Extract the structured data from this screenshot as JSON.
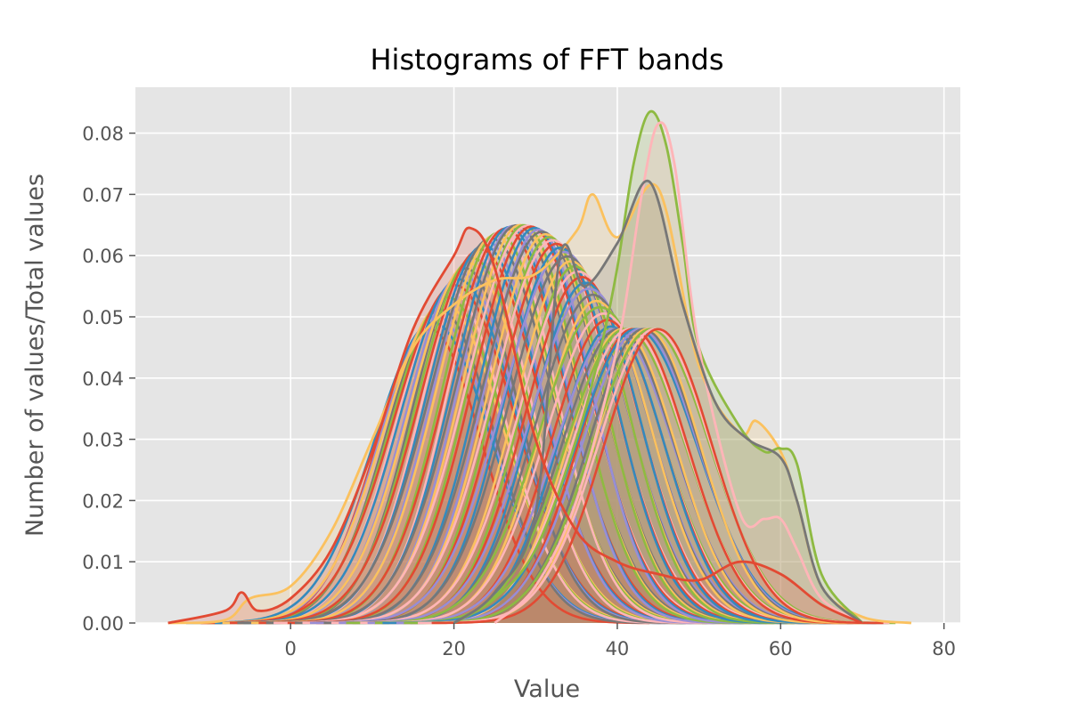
{
  "chart_data": {
    "type": "line",
    "title": "Histograms of FFT bands",
    "xlabel": "Value",
    "ylabel": "Number of values/Total values",
    "xlim": [
      -19,
      82
    ],
    "ylim": [
      0,
      0.0875
    ],
    "xticks": [
      0,
      20,
      40,
      60,
      80
    ],
    "xtick_labels": [
      "0",
      "20",
      "40",
      "60",
      "80"
    ],
    "yticks": [
      0,
      0.01,
      0.02,
      0.03,
      0.04,
      0.05,
      0.06,
      0.07,
      0.08
    ],
    "ytick_labels": [
      "0.00",
      "0.01",
      "0.02",
      "0.03",
      "0.04",
      "0.05",
      "0.06",
      "0.07",
      "0.08"
    ],
    "grid": true,
    "legend": "none",
    "style": {
      "plot_background": "#e5e5e5",
      "grid_color": "#ffffff",
      "palette": [
        "#e24a33",
        "#348abd",
        "#988ed5",
        "#777777",
        "#fbc15e",
        "#8eba42",
        "#ffb5b8"
      ]
    },
    "band_family": {
      "description_values": {
        "band_count": 64,
        "peak_x_range": [
          17,
          45
        ],
        "peak_height_range": [
          0.048,
          0.065
        ],
        "width_range": [
          6.5,
          7.5
        ]
      }
    },
    "series": [
      {
        "color": "#fbc15e",
        "x": [
          -15,
          -8,
          -5,
          0,
          5,
          10,
          15,
          20,
          25,
          30,
          35,
          37,
          40,
          45,
          50,
          55,
          57,
          60,
          62,
          65,
          70,
          76
        ],
        "y": [
          0,
          0.0005,
          0.004,
          0.006,
          0.015,
          0.03,
          0.045,
          0.052,
          0.056,
          0.057,
          0.064,
          0.07,
          0.063,
          0.071,
          0.042,
          0.031,
          0.033,
          0.028,
          0.02,
          0.006,
          0.001,
          0
        ]
      },
      {
        "color": "#8eba42",
        "x": [
          20,
          25,
          30,
          35,
          38,
          40,
          42,
          44,
          46,
          48,
          50,
          55,
          58,
          60,
          62,
          65,
          70
        ],
        "y": [
          0.0,
          0.004,
          0.012,
          0.03,
          0.045,
          0.058,
          0.075,
          0.0835,
          0.078,
          0.062,
          0.045,
          0.032,
          0.028,
          0.0285,
          0.026,
          0.008,
          0.0
        ]
      },
      {
        "color": "#ffb5b8",
        "x": [
          25,
          30,
          35,
          40,
          43,
          45,
          47,
          50,
          55,
          58,
          60,
          62,
          65,
          70
        ],
        "y": [
          0.0,
          0.006,
          0.02,
          0.045,
          0.07,
          0.0815,
          0.075,
          0.045,
          0.018,
          0.017,
          0.017,
          0.012,
          0.004,
          0.0
        ]
      },
      {
        "color": "#777777",
        "x": [
          20,
          25,
          30,
          33,
          36,
          40,
          44,
          48,
          52,
          56,
          60,
          62,
          65,
          70
        ],
        "y": [
          0.0,
          0.005,
          0.018,
          0.06,
          0.055,
          0.062,
          0.072,
          0.052,
          0.036,
          0.03,
          0.027,
          0.02,
          0.006,
          0.0
        ]
      },
      {
        "color": "#e24a33",
        "x": [
          -15,
          -8,
          -6,
          -4,
          0,
          5,
          10,
          15,
          20,
          22,
          25,
          30,
          35,
          40,
          45,
          50,
          55,
          60,
          65,
          70
        ],
        "y": [
          0.0,
          0.002,
          0.005,
          0.002,
          0.004,
          0.012,
          0.028,
          0.048,
          0.06,
          0.0645,
          0.058,
          0.03,
          0.015,
          0.01,
          0.008,
          0.007,
          0.01,
          0.008,
          0.003,
          0.0
        ]
      }
    ]
  }
}
